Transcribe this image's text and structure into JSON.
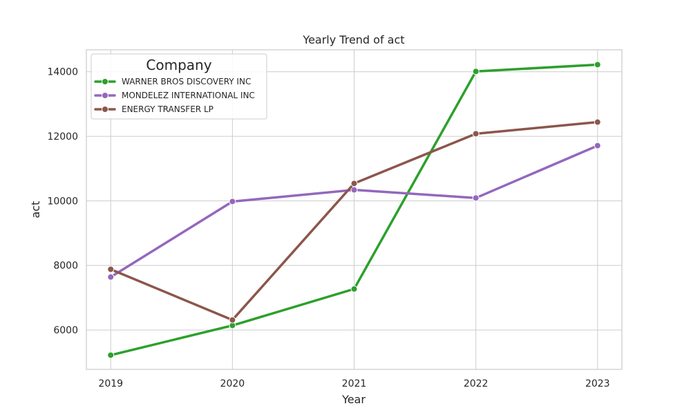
{
  "chart_data": {
    "type": "line",
    "title": "Yearly Trend of act",
    "xlabel": "Year",
    "ylabel": "act",
    "x": [
      2019,
      2020,
      2021,
      2022,
      2023
    ],
    "x_tick_labels": [
      "2019",
      "2020",
      "2021",
      "2022",
      "2023"
    ],
    "y_ticks": [
      6000,
      8000,
      10000,
      12000,
      14000
    ],
    "y_tick_labels": [
      "6000",
      "8000",
      "10000",
      "12000",
      "14000"
    ],
    "xlim": [
      2018.8,
      2023.2
    ],
    "ylim": [
      4780,
      14680
    ],
    "grid": true,
    "legend": {
      "title": "Company",
      "placement": "top-left"
    },
    "series": [
      {
        "name": "WARNER BROS DISCOVERY INC",
        "color": "#2ca02c",
        "values": [
          5220,
          6140,
          7270,
          14010,
          14220
        ]
      },
      {
        "name": "MONDELEZ INTERNATIONAL INC",
        "color": "#9467bd",
        "values": [
          7640,
          9980,
          10340,
          10090,
          11710
        ]
      },
      {
        "name": "ENERGY TRANSFER LP",
        "color": "#8c564b",
        "values": [
          7880,
          6310,
          10540,
          12080,
          12440
        ]
      }
    ]
  }
}
